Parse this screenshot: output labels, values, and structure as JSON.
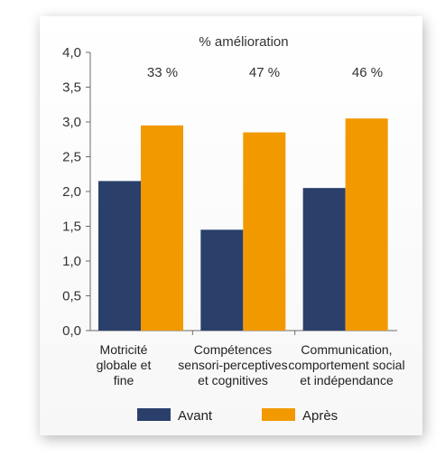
{
  "chart_data": {
    "type": "bar",
    "title": "% amélioration",
    "categories": [
      [
        "Motricité",
        "globale et",
        "fine"
      ],
      [
        "Compétences",
        "sensori-perceptives",
        "et cognitives"
      ],
      [
        "Communication,",
        "comportement social",
        "et indépendance"
      ]
    ],
    "annotations": [
      "33 %",
      "47 %",
      "46 %"
    ],
    "series": [
      {
        "name": "Avant",
        "values": [
          2.15,
          1.45,
          2.05
        ],
        "color": "#2b3f6b"
      },
      {
        "name": "Après",
        "values": [
          2.95,
          2.85,
          3.05
        ],
        "color": "#f29900"
      }
    ],
    "ylim": [
      0,
      4
    ],
    "yticks": [
      "0,0",
      "0,5",
      "1,0",
      "1,5",
      "2,0",
      "2,5",
      "3,0",
      "3,5",
      "4,0"
    ],
    "grid": false,
    "legend": "bottom"
  }
}
